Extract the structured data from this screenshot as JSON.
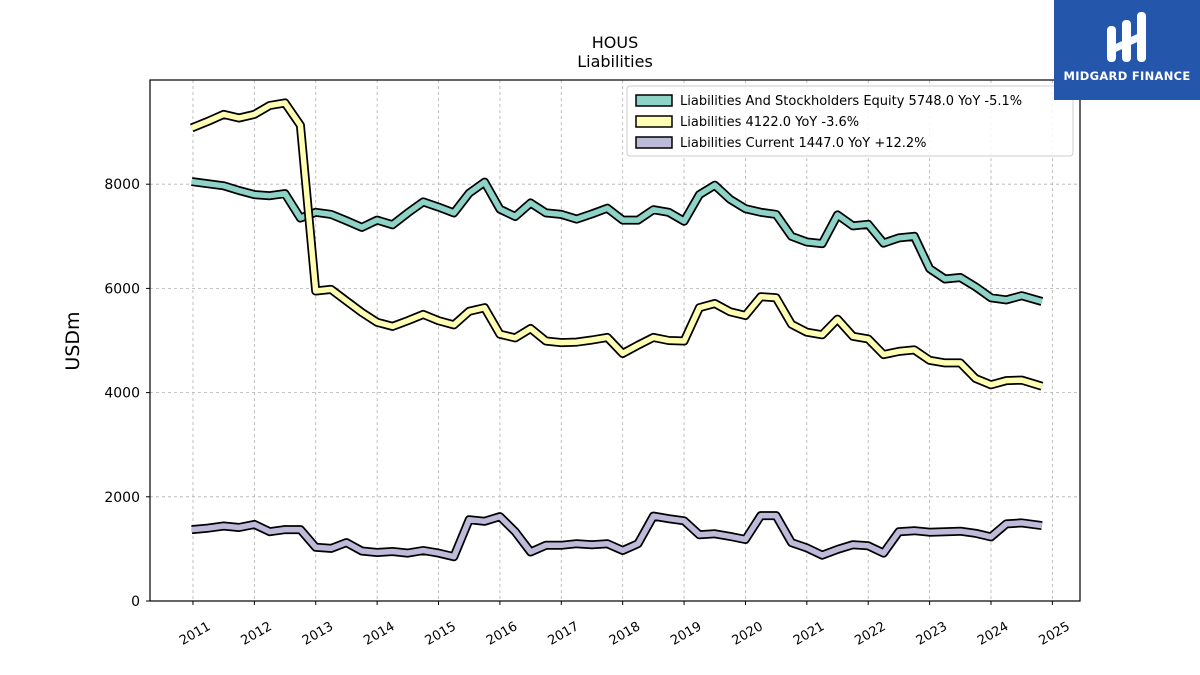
{
  "chart_data": {
    "type": "line",
    "title": "HOUS",
    "subtitle": "Liabilities",
    "xlabel": "",
    "ylabel": "USDm",
    "ylim": [
      0,
      10000
    ],
    "xlim": [
      2010.3,
      2025.45
    ],
    "xticks": [
      "2011",
      "2012",
      "2013",
      "2014",
      "2015",
      "2016",
      "2017",
      "2018",
      "2019",
      "2020",
      "2021",
      "2022",
      "2023",
      "2024",
      "2025"
    ],
    "yticks": [
      "0",
      "2000",
      "4000",
      "6000",
      "8000"
    ],
    "grid": true,
    "legend_position": "top-right",
    "series": [
      {
        "name": "Liabilities And Stockholders Equity",
        "legend": "Liabilities And Stockholders Equity  5748.0 YoY -5.1%",
        "color": "#8dd3c7",
        "points": [
          [
            2010.98,
            8050
          ],
          [
            2011.5,
            7970
          ],
          [
            2011.75,
            7880
          ],
          [
            2012.0,
            7800
          ],
          [
            2012.25,
            7780
          ],
          [
            2012.5,
            7820
          ],
          [
            2012.75,
            7350
          ],
          [
            2013.0,
            7460
          ],
          [
            2013.25,
            7420
          ],
          [
            2013.5,
            7300
          ],
          [
            2013.75,
            7170
          ],
          [
            2014.0,
            7310
          ],
          [
            2014.25,
            7220
          ],
          [
            2014.5,
            7450
          ],
          [
            2014.75,
            7660
          ],
          [
            2015.0,
            7560
          ],
          [
            2015.25,
            7450
          ],
          [
            2015.5,
            7830
          ],
          [
            2015.75,
            8040
          ],
          [
            2016.0,
            7520
          ],
          [
            2016.25,
            7380
          ],
          [
            2016.5,
            7640
          ],
          [
            2016.75,
            7450
          ],
          [
            2017.0,
            7420
          ],
          [
            2017.25,
            7330
          ],
          [
            2017.5,
            7430
          ],
          [
            2017.75,
            7540
          ],
          [
            2018.0,
            7310
          ],
          [
            2018.25,
            7310
          ],
          [
            2018.5,
            7510
          ],
          [
            2018.75,
            7460
          ],
          [
            2019.0,
            7290
          ],
          [
            2019.25,
            7800
          ],
          [
            2019.5,
            7980
          ],
          [
            2019.75,
            7710
          ],
          [
            2020.0,
            7530
          ],
          [
            2020.25,
            7460
          ],
          [
            2020.5,
            7420
          ],
          [
            2020.75,
            7000
          ],
          [
            2021.0,
            6890
          ],
          [
            2021.25,
            6860
          ],
          [
            2021.5,
            7410
          ],
          [
            2021.75,
            7200
          ],
          [
            2022.0,
            7230
          ],
          [
            2022.25,
            6870
          ],
          [
            2022.5,
            6970
          ],
          [
            2022.75,
            7000
          ],
          [
            2023.0,
            6380
          ],
          [
            2023.25,
            6180
          ],
          [
            2023.5,
            6210
          ],
          [
            2023.75,
            6030
          ],
          [
            2024.0,
            5820
          ],
          [
            2024.25,
            5780
          ],
          [
            2024.5,
            5860
          ],
          [
            2024.83,
            5748
          ]
        ]
      },
      {
        "name": "Liabilities",
        "legend": "Liabilities  4122.0 YoY -3.6%",
        "color": "#ffffb3",
        "points": [
          [
            2010.98,
            9080
          ],
          [
            2011.25,
            9210
          ],
          [
            2011.5,
            9340
          ],
          [
            2011.75,
            9270
          ],
          [
            2012.0,
            9340
          ],
          [
            2012.25,
            9510
          ],
          [
            2012.5,
            9560
          ],
          [
            2012.75,
            9130
          ],
          [
            2013.0,
            5950
          ],
          [
            2013.25,
            5980
          ],
          [
            2013.5,
            5760
          ],
          [
            2013.75,
            5540
          ],
          [
            2014.0,
            5350
          ],
          [
            2014.25,
            5270
          ],
          [
            2014.5,
            5380
          ],
          [
            2014.75,
            5500
          ],
          [
            2015.0,
            5380
          ],
          [
            2015.25,
            5300
          ],
          [
            2015.5,
            5560
          ],
          [
            2015.75,
            5630
          ],
          [
            2016.0,
            5120
          ],
          [
            2016.25,
            5050
          ],
          [
            2016.5,
            5230
          ],
          [
            2016.75,
            4990
          ],
          [
            2017.0,
            4960
          ],
          [
            2017.25,
            4970
          ],
          [
            2017.5,
            5010
          ],
          [
            2017.75,
            5060
          ],
          [
            2018.0,
            4750
          ],
          [
            2018.25,
            4910
          ],
          [
            2018.5,
            5060
          ],
          [
            2018.75,
            5000
          ],
          [
            2019.0,
            4990
          ],
          [
            2019.25,
            5630
          ],
          [
            2019.5,
            5710
          ],
          [
            2019.75,
            5550
          ],
          [
            2020.0,
            5480
          ],
          [
            2020.25,
            5840
          ],
          [
            2020.5,
            5820
          ],
          [
            2020.75,
            5310
          ],
          [
            2021.0,
            5160
          ],
          [
            2021.25,
            5110
          ],
          [
            2021.5,
            5410
          ],
          [
            2021.75,
            5080
          ],
          [
            2022.0,
            5030
          ],
          [
            2022.25,
            4730
          ],
          [
            2022.5,
            4790
          ],
          [
            2022.75,
            4820
          ],
          [
            2023.0,
            4620
          ],
          [
            2023.25,
            4570
          ],
          [
            2023.5,
            4570
          ],
          [
            2023.75,
            4270
          ],
          [
            2024.0,
            4150
          ],
          [
            2024.25,
            4230
          ],
          [
            2024.5,
            4240
          ],
          [
            2024.83,
            4122
          ]
        ]
      },
      {
        "name": "Liabilities Current",
        "legend": "Liabilities Current  1447.0 YoY +12.2%",
        "color": "#bebada",
        "points": [
          [
            2010.98,
            1370
          ],
          [
            2011.25,
            1400
          ],
          [
            2011.5,
            1440
          ],
          [
            2011.75,
            1410
          ],
          [
            2012.0,
            1470
          ],
          [
            2012.25,
            1330
          ],
          [
            2012.5,
            1370
          ],
          [
            2012.75,
            1370
          ],
          [
            2013.0,
            1030
          ],
          [
            2013.25,
            1010
          ],
          [
            2013.5,
            1120
          ],
          [
            2013.75,
            960
          ],
          [
            2014.0,
            930
          ],
          [
            2014.25,
            950
          ],
          [
            2014.5,
            920
          ],
          [
            2014.75,
            970
          ],
          [
            2015.0,
            920
          ],
          [
            2015.25,
            850
          ],
          [
            2015.5,
            1560
          ],
          [
            2015.75,
            1530
          ],
          [
            2016.0,
            1620
          ],
          [
            2016.25,
            1330
          ],
          [
            2016.5,
            940
          ],
          [
            2016.75,
            1070
          ],
          [
            2017.0,
            1070
          ],
          [
            2017.25,
            1100
          ],
          [
            2017.5,
            1080
          ],
          [
            2017.75,
            1100
          ],
          [
            2018.0,
            970
          ],
          [
            2018.25,
            1100
          ],
          [
            2018.5,
            1630
          ],
          [
            2018.75,
            1580
          ],
          [
            2019.0,
            1540
          ],
          [
            2019.25,
            1270
          ],
          [
            2019.5,
            1290
          ],
          [
            2019.75,
            1240
          ],
          [
            2020.0,
            1180
          ],
          [
            2020.25,
            1640
          ],
          [
            2020.5,
            1640
          ],
          [
            2020.75,
            1120
          ],
          [
            2021.0,
            1020
          ],
          [
            2021.25,
            880
          ],
          [
            2021.5,
            990
          ],
          [
            2021.75,
            1080
          ],
          [
            2022.0,
            1060
          ],
          [
            2022.25,
            920
          ],
          [
            2022.5,
            1330
          ],
          [
            2022.75,
            1350
          ],
          [
            2023.0,
            1320
          ],
          [
            2023.25,
            1330
          ],
          [
            2023.5,
            1340
          ],
          [
            2023.75,
            1300
          ],
          [
            2024.0,
            1230
          ],
          [
            2024.25,
            1480
          ],
          [
            2024.5,
            1500
          ],
          [
            2024.83,
            1447
          ]
        ]
      }
    ]
  },
  "logo": {
    "brand": "MIDGARD FINANCE",
    "color": "#2457ac"
  }
}
